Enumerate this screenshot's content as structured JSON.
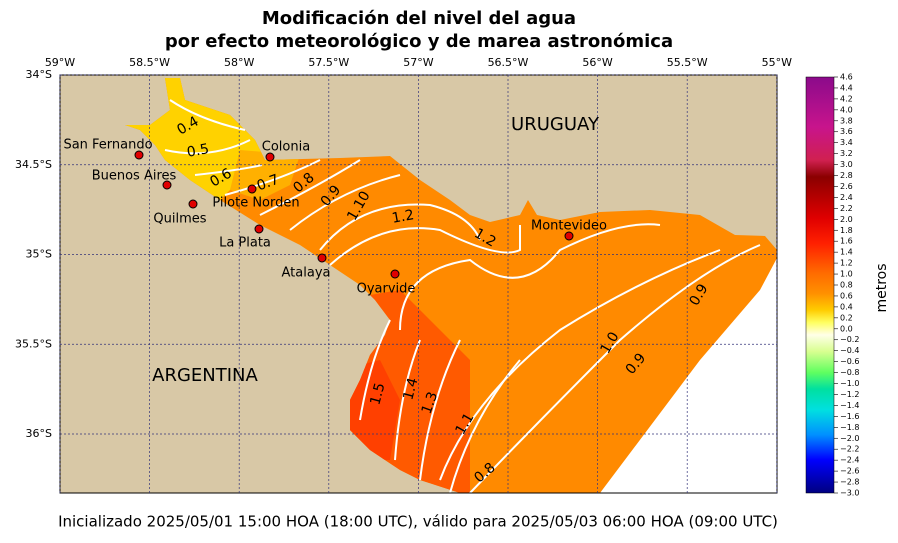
{
  "title": [
    "Modificación del nivel del agua",
    "por efecto meteorológico y de marea astronómica"
  ],
  "lon_labels": [
    "59°W",
    "58.5°W",
    "58°W",
    "57.5°W",
    "57°W",
    "56.5°W",
    "56°W",
    "55.5°W",
    "55°W"
  ],
  "lat_labels": [
    "34°S",
    "34.5°S",
    "35°S",
    "35.5°S",
    "36°S"
  ],
  "regions": [
    "URUGUAY",
    "ARGENTINA"
  ],
  "places": [
    "San Fernando",
    "Buenos Aires",
    "Colonia",
    "Pilote Norden",
    "Quilmes",
    "La Plata",
    "Atalaya",
    "Oyarvide",
    "Montevideo"
  ],
  "contour_labels": [
    "0.4",
    "0.5",
    "0.6",
    "0.7",
    "0.8",
    "0.9",
    "1.10",
    "1.2",
    "1.2",
    "0.9",
    "1.0",
    "0.9",
    "1.5",
    "1.4",
    "1.3",
    "1.1",
    "0.8"
  ],
  "colorbar": {
    "label": "metros",
    "ticks": [
      "4.6",
      "4.4",
      "4.2",
      "4.0",
      "3.8",
      "3.6",
      "3.4",
      "3.2",
      "3.0",
      "2.8",
      "2.6",
      "2.4",
      "2.2",
      "2.0",
      "1.8",
      "1.6",
      "1.4",
      "1.2",
      "1.0",
      "0.8",
      "0.6",
      "0.4",
      "0.2",
      "0.0",
      "−0.2",
      "−0.4",
      "−0.6",
      "−0.8",
      "−1.0",
      "−1.2",
      "−1.4",
      "−1.6",
      "−1.8",
      "−2.0",
      "−2.2",
      "−2.4",
      "−2.6",
      "−2.8",
      "−3.0"
    ]
  },
  "footer": "Inicializado 2025/05/01 15:00 HOA (18:00 UTC), válido para 2025/05/03 06:00 HOA (09:00 UTC)"
}
